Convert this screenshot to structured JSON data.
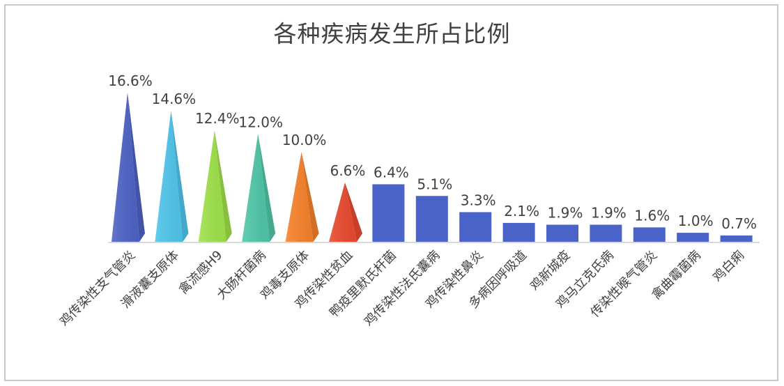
{
  "chart_data": {
    "type": "bar",
    "title": "各种疾病发生所占比例",
    "xlabel": "",
    "ylabel": "",
    "ylim": [
      0,
      18
    ],
    "grid": false,
    "legend": "none",
    "value_format": "percent",
    "categories": [
      "鸡传染性支气管炎",
      "滑液囊支原体",
      "禽流感H9",
      "大肠杆菌病",
      "鸡毒支原体",
      "鸡传染性贫血",
      "鸭疫里默氏杆菌",
      "鸡传染性法氏囊病",
      "鸡传染性鼻炎",
      "多病因呼吸道",
      "鸡新城疫",
      "鸡马立克氏病",
      "传染性喉气管炎",
      "禽曲霉菌病",
      "鸡白痢"
    ],
    "values": [
      16.6,
      14.6,
      12.4,
      12.0,
      10.0,
      6.6,
      6.4,
      5.1,
      3.3,
      2.1,
      1.9,
      1.9,
      1.6,
      1.0,
      0.7
    ],
    "labels": [
      "16.6%",
      "14.6%",
      "12.4%",
      "12.0%",
      "10.0%",
      "6.6%",
      "6.4%",
      "5.1%",
      "3.3%",
      "2.1%",
      "1.9%",
      "1.9%",
      "1.6%",
      "1.0%",
      "0.7%"
    ],
    "shapes": [
      "pyramid",
      "pyramid",
      "pyramid",
      "pyramid",
      "pyramid",
      "pyramid",
      "column",
      "column",
      "column",
      "column",
      "column",
      "column",
      "column",
      "column",
      "column"
    ],
    "colors": [
      "#4e63c6",
      "#4fc6ec",
      "#9fe24a",
      "#4fc7a8",
      "#f7822a",
      "#ea4a2e",
      "#4a63c8",
      "#4a63c8",
      "#4a63c8",
      "#4a63c8",
      "#4a63c8",
      "#4a63c8",
      "#4a63c8",
      "#4a63c8",
      "#4a63c8"
    ]
  }
}
